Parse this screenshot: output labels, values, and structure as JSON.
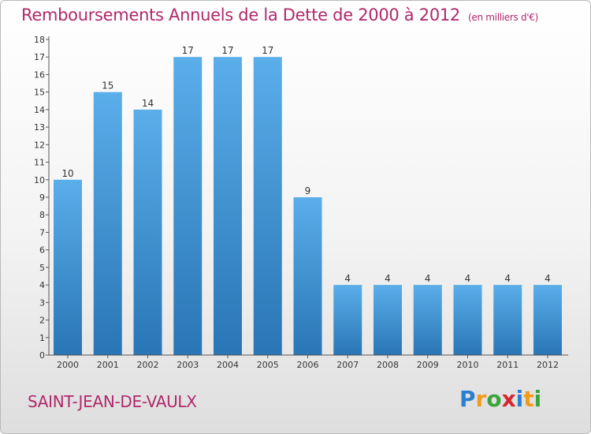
{
  "header": {
    "title": "Remboursements Annuels de la Dette de 2000 à 2012",
    "subtitle": "(en milliers d'€)"
  },
  "footer": {
    "commune": "SAINT-JEAN-DE-VAULX",
    "logo": "Proxiti"
  },
  "colors": {
    "title": "#b0286a",
    "bar_top": "#5aaeea",
    "bar_bottom": "#2a75b5",
    "logo_letters": [
      "#2a7fd1",
      "#f29b1b",
      "#3aa53a",
      "#d8262f",
      "#2a7fd1",
      "#f29b1b",
      "#3aa53a"
    ]
  },
  "chart_data": {
    "type": "bar",
    "categories": [
      "2000",
      "2001",
      "2002",
      "2003",
      "2004",
      "2005",
      "2006",
      "2007",
      "2008",
      "2009",
      "2010",
      "2011",
      "2012"
    ],
    "values": [
      10,
      15,
      14,
      17,
      17,
      17,
      9,
      4,
      4,
      4,
      4,
      4,
      4
    ],
    "data_labels": [
      "10",
      "15",
      "14",
      "17",
      "17",
      "17",
      "9",
      "4",
      "4",
      "4",
      "4",
      "4",
      "4"
    ],
    "y_ticks": [
      "0",
      "1",
      "2",
      "3",
      "4",
      "5",
      "6",
      "7",
      "8",
      "9",
      "10",
      "11",
      "12",
      "13",
      "14",
      "15",
      "16",
      "17",
      "18"
    ],
    "ylim": [
      0,
      18
    ],
    "grid": false,
    "legend": "none"
  }
}
